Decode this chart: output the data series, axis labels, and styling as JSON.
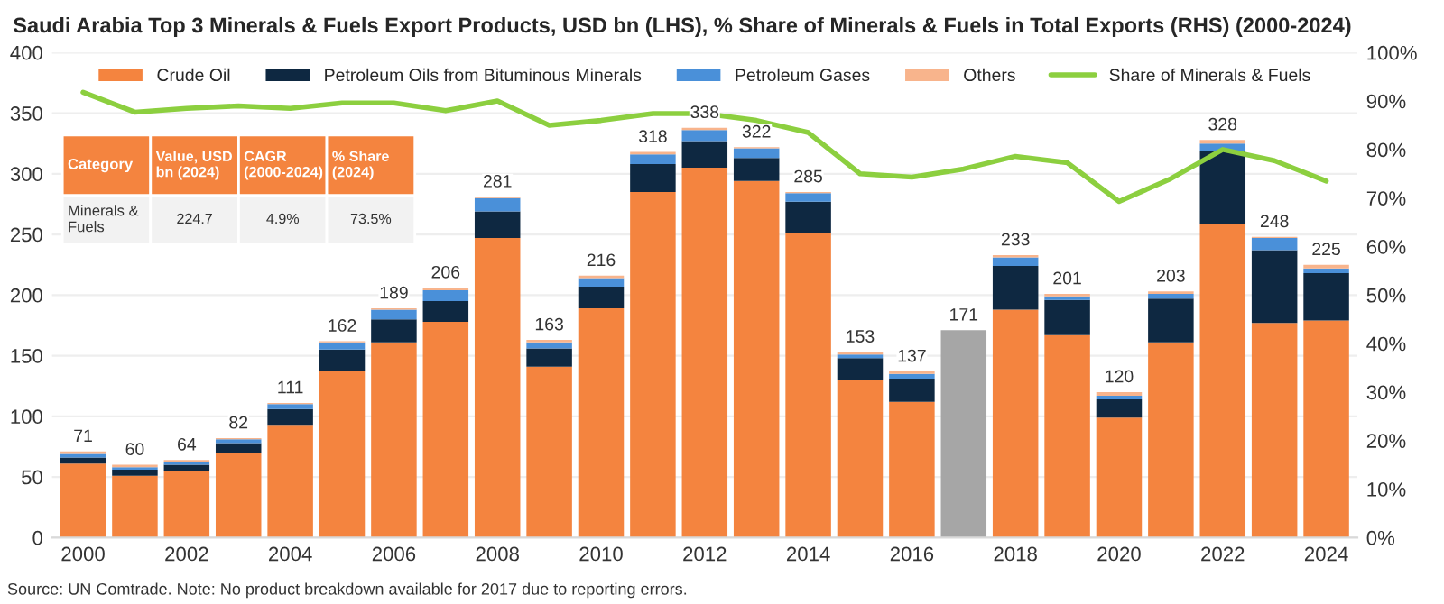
{
  "chart_data": {
    "type": "bar",
    "stacked": true,
    "title": "Saudi Arabia Top 3 Minerals & Fuels Export Products, USD bn (LHS), % Share of Minerals & Fuels in Total Exports (RHS) (2000-2024)",
    "categories": [
      "2000",
      null,
      "2002",
      null,
      "2004",
      null,
      "2006",
      null,
      "2008",
      null,
      "2010",
      null,
      "2012",
      null,
      "2014",
      null,
      "2016",
      null,
      "2018",
      null,
      "2020",
      null,
      "2022",
      null,
      "2024"
    ],
    "series": [
      {
        "name": "Crude Oil",
        "color": "#f4843f",
        "values": [
          61,
          51,
          55,
          70,
          93,
          137,
          161,
          178,
          247,
          141,
          189,
          285,
          305,
          294,
          251,
          130,
          112,
          null,
          188,
          167,
          99,
          161,
          259,
          177,
          179
        ]
      },
      {
        "name": "Petroleum Oils from Bituminous Minerals",
        "color": "#0e2841",
        "values": [
          5,
          5,
          5,
          8,
          13,
          18,
          19,
          17,
          22,
          15,
          18,
          23,
          22,
          19,
          26,
          18,
          19,
          null,
          36,
          29,
          15,
          36,
          60,
          60,
          39
        ]
      },
      {
        "name": "Petroleum Gases",
        "color": "#4a90d9",
        "values": [
          3,
          2,
          2,
          3,
          4,
          6,
          8,
          9,
          11,
          5,
          7,
          8,
          9,
          8,
          7,
          3,
          4,
          null,
          7,
          3,
          3,
          4,
          6,
          10,
          4
        ]
      },
      {
        "name": "Others",
        "color": "#f8b48c",
        "values": [
          2,
          2,
          2,
          1,
          1,
          1,
          1,
          2,
          1,
          2,
          2,
          2,
          2,
          1,
          1,
          2,
          2,
          null,
          2,
          2,
          3,
          2,
          3,
          1,
          3
        ]
      },
      {
        "color": "#a6a6a6",
        "values": [
          null,
          null,
          null,
          null,
          null,
          null,
          null,
          null,
          null,
          null,
          null,
          null,
          null,
          null,
          null,
          null,
          null,
          171,
          null,
          null,
          null,
          null,
          null,
          null,
          null
        ]
      },
      {
        "name": "Share of Minerals & Fuels",
        "type": "line",
        "axis": "y2",
        "color": "#8ccf3f",
        "values": [
          91.8,
          87.7,
          88.5,
          89,
          88.5,
          89.6,
          89.6,
          88,
          90,
          85,
          86,
          87.4,
          87.4,
          86,
          83.5,
          75,
          74.3,
          76,
          78.6,
          77.3,
          69.3,
          74,
          80,
          77.7,
          73.5
        ]
      }
    ],
    "totals": [
      "71",
      "60",
      "64",
      "82",
      "111",
      "162",
      "189",
      "206",
      "281",
      "163",
      "216",
      "318",
      "338",
      "322",
      "285",
      "153",
      "137",
      "171",
      "233",
      "201",
      "120",
      "203",
      "328",
      "248",
      "225"
    ],
    "ylim": [
      0,
      400
    ],
    "yticks": [
      0,
      50,
      100,
      150,
      200,
      250,
      300,
      350,
      400
    ],
    "y2lim": [
      0,
      100
    ],
    "y2ticks": [
      {
        "value": 0,
        "label": "0%"
      },
      {
        "value": 10,
        "label": "10%"
      },
      {
        "value": 20,
        "label": "20%"
      },
      {
        "value": 30,
        "label": "30%"
      },
      {
        "value": 40,
        "label": "40%"
      },
      {
        "value": 50,
        "label": "50%"
      },
      {
        "value": 60,
        "label": "60%"
      },
      {
        "value": 70,
        "label": "70%"
      },
      {
        "value": 80,
        "label": "80%"
      },
      {
        "value": 90,
        "label": "90%"
      },
      {
        "value": 100,
        "label": "100%"
      }
    ],
    "grid": "y",
    "legend": "top",
    "annotations": [
      "Category",
      "Value, USD bn (2024)",
      "CAGR (2000-2024)",
      "% Share (2024)",
      "Minerals & Fuels",
      "224.7",
      "4.9%",
      "73.5%",
      "Source: UN Comtrade. Note: No product breakdown available for 2017 due to reporting errors."
    ]
  }
}
